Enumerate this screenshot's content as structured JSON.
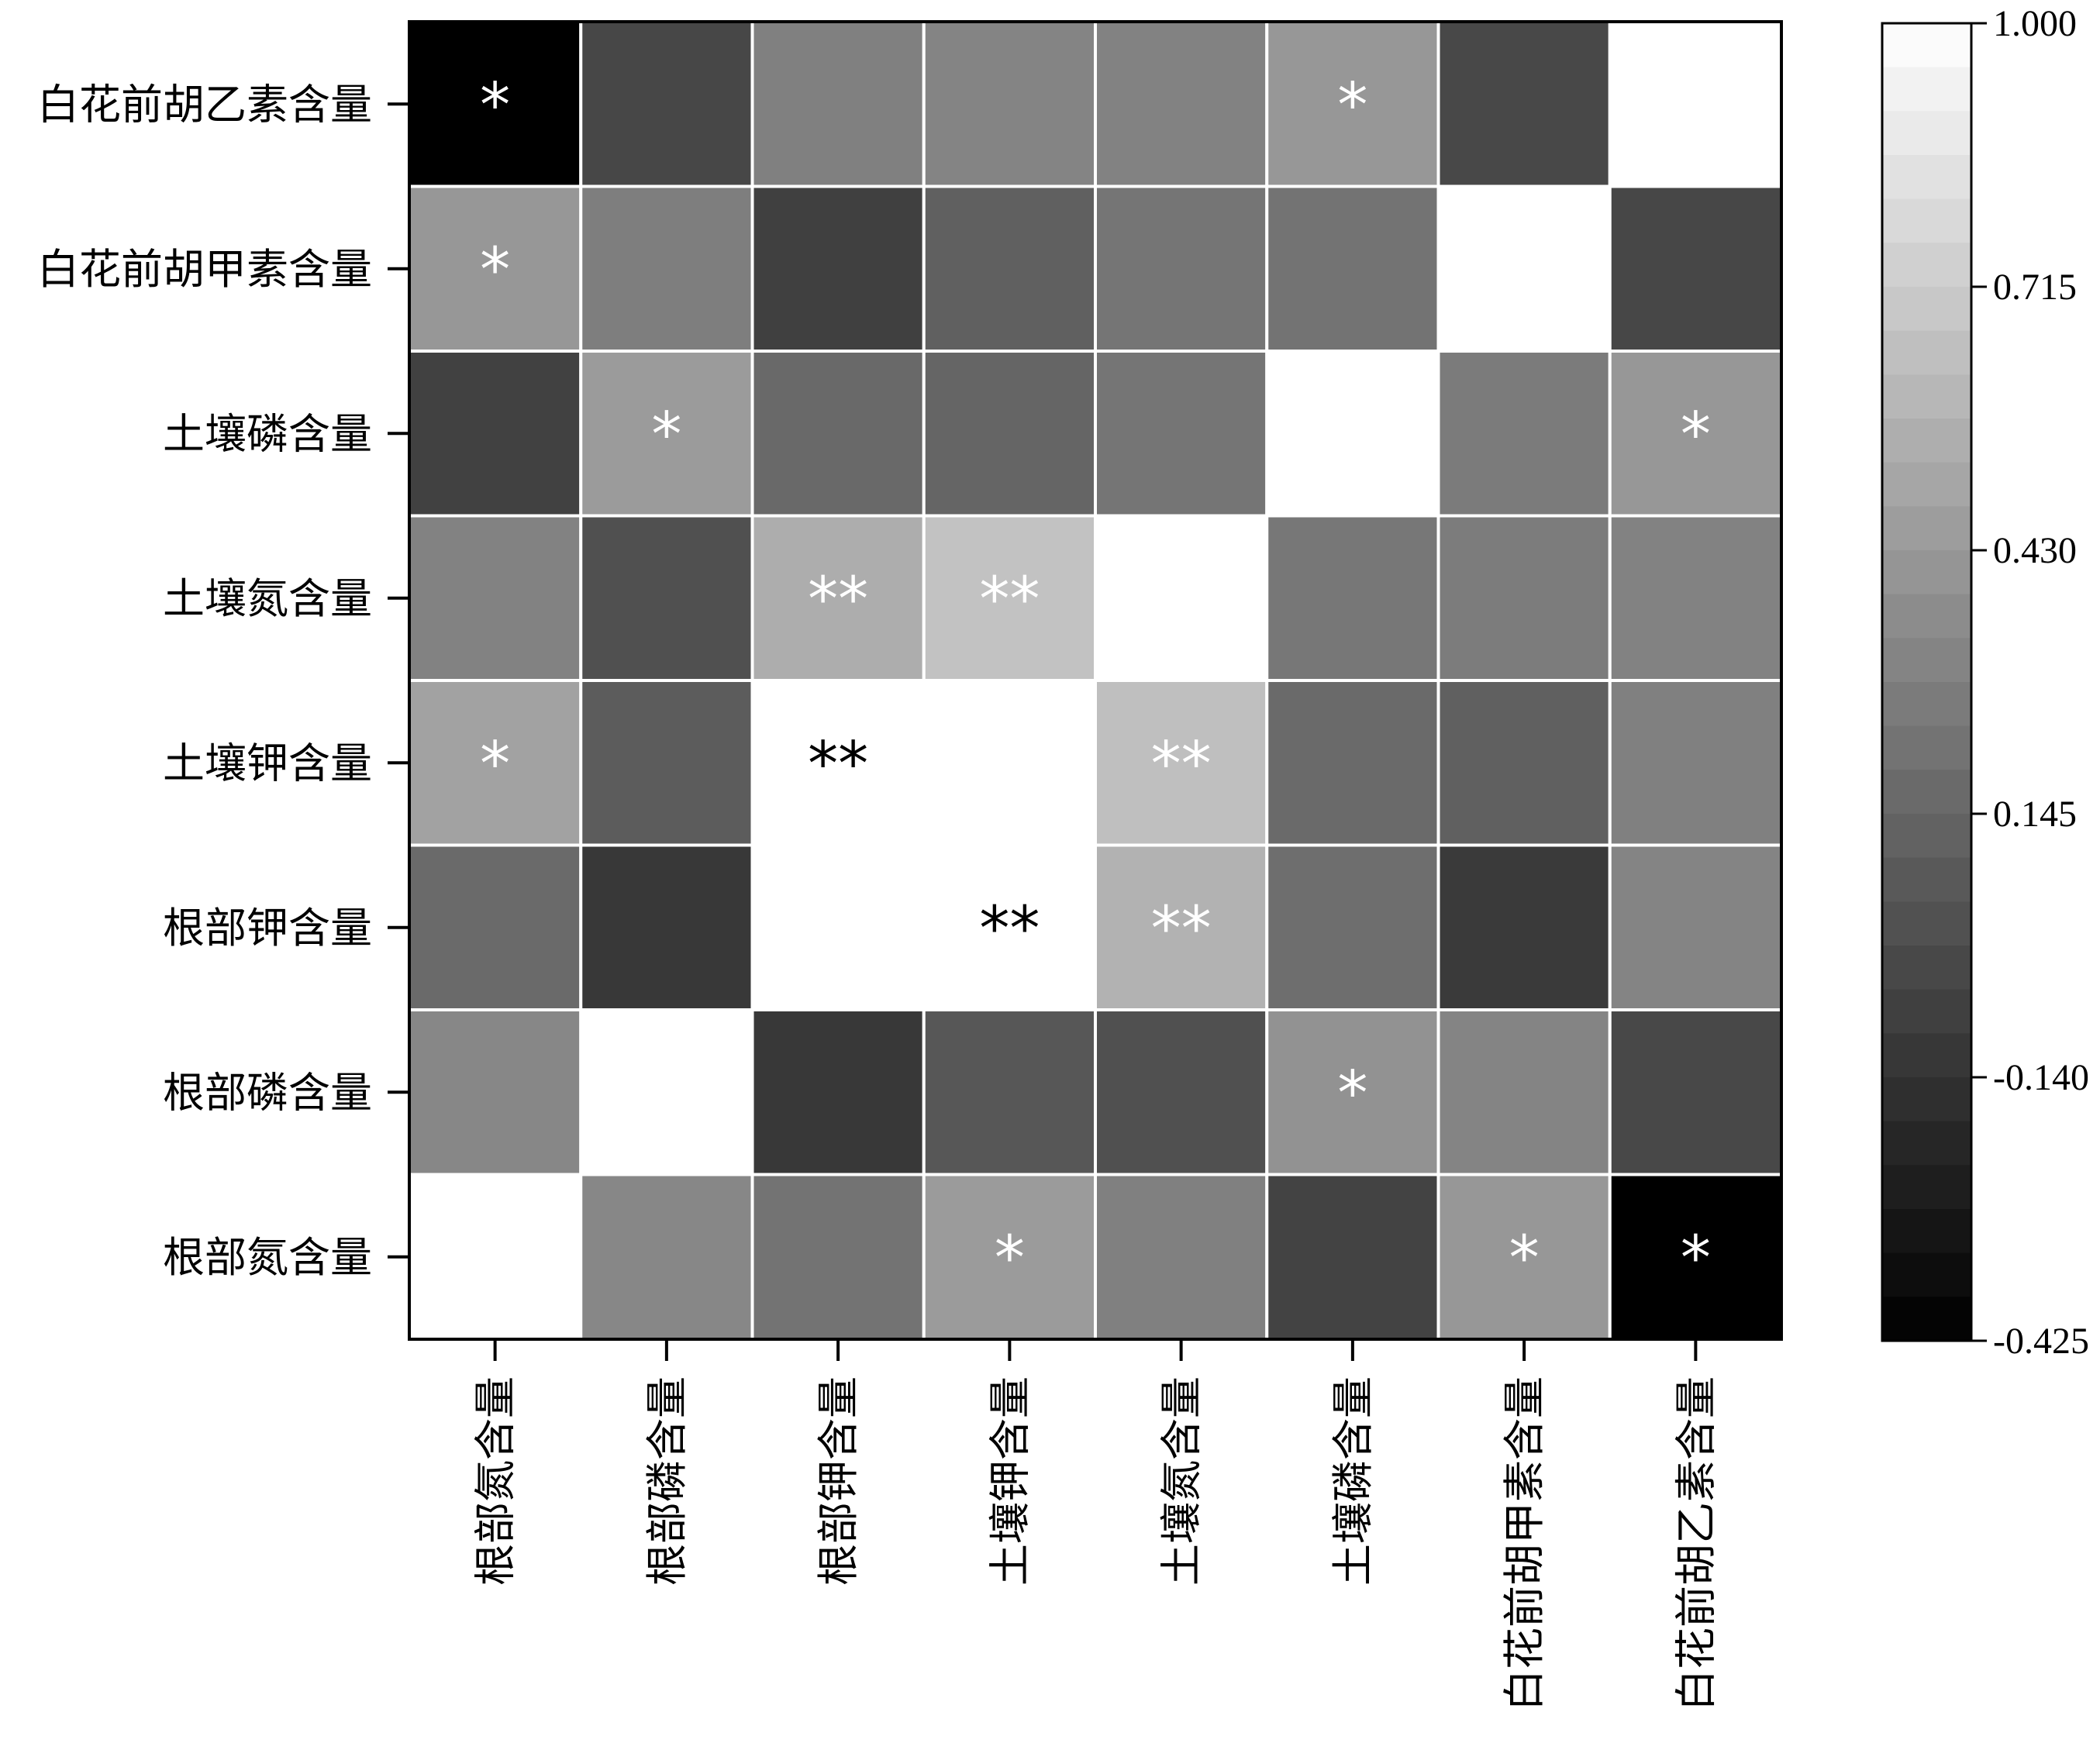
{
  "chart_data": {
    "type": "heatmap",
    "title": "",
    "xlabel": "",
    "ylabel": "",
    "row_labels": [
      "白花前胡乙素含量",
      "白花前胡甲素含量",
      "土壤磷含量",
      "土壤氮含量",
      "土壤钾含量",
      "根部钾含量",
      "根部磷含量",
      "根部氮含量"
    ],
    "col_labels": [
      "根部氮含量",
      "根部磷含量",
      "根部钾含量",
      "土壤钾含量",
      "土壤氮含量",
      "土壤磷含量",
      "白花前胡甲素含量",
      "白花前胡乙素含量"
    ],
    "values": [
      [
        -0.425,
        -0.03,
        0.29,
        0.31,
        0.3,
        0.42,
        -0.02,
        1.0
      ],
      [
        0.42,
        0.28,
        -0.07,
        0.11,
        0.23,
        0.22,
        1.0,
        -0.03
      ],
      [
        -0.06,
        0.44,
        0.16,
        0.14,
        0.23,
        1.0,
        0.26,
        0.42
      ],
      [
        0.3,
        0.02,
        0.54,
        0.66,
        1.0,
        0.24,
        0.27,
        0.3
      ],
      [
        0.48,
        0.09,
        1.0,
        1.0,
        0.64,
        0.17,
        0.11,
        0.29
      ],
      [
        0.17,
        -0.11,
        1.0,
        1.0,
        0.57,
        0.19,
        -0.1,
        0.31
      ],
      [
        0.33,
        1.0,
        -0.11,
        0.06,
        0.02,
        0.39,
        0.31,
        -0.02
      ],
      [
        1.0,
        0.33,
        0.22,
        0.44,
        0.29,
        -0.05,
        0.42,
        -0.425
      ]
    ],
    "significance": [
      [
        "*",
        "",
        "",
        "",
        "",
        "*",
        "",
        ""
      ],
      [
        "*",
        "",
        "",
        "",
        "",
        "",
        "",
        ""
      ],
      [
        "",
        "*",
        "",
        "",
        "",
        "",
        "",
        "*"
      ],
      [
        "",
        "",
        "**",
        "**",
        "",
        "",
        "",
        ""
      ],
      [
        "*",
        "",
        "**",
        "",
        "**",
        "",
        "",
        ""
      ],
      [
        "",
        "",
        "",
        "**",
        "**",
        "",
        "",
        ""
      ],
      [
        "",
        "",
        "",
        "",
        "",
        "*",
        "",
        ""
      ],
      [
        "",
        "",
        "",
        "*",
        "",
        "",
        "*",
        "*"
      ]
    ],
    "colorbar": {
      "min": -0.425,
      "max": 1.0,
      "ticks": [
        "1.000",
        "0.715",
        "0.430",
        "0.145",
        "-0.140",
        "-0.425"
      ],
      "colors": {
        "low": "#000000",
        "high": "#ffffff"
      },
      "steps": 30
    },
    "grid": true
  }
}
